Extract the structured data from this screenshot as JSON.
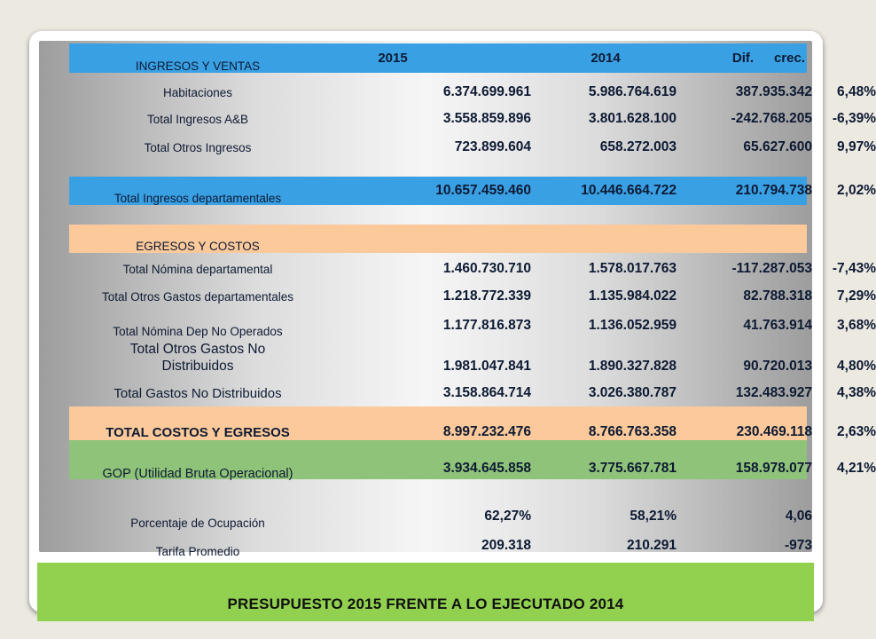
{
  "title": "PRESUPUESTO 2015 FRENTE A LO EJECUTADO 2014",
  "colors": {
    "header_blue": "#3aa0e4",
    "section_peach": "#fbc99a",
    "gop_green": "#8fc379",
    "footer_green": "#92d050"
  },
  "header": {
    "label": "INGRESOS Y VENTAS",
    "col1": "2015",
    "col2": "2014",
    "col3": "Dif.",
    "col4": "crec."
  },
  "rows": [
    {
      "label": "Habitaciones",
      "v2015": "6.374.699.961",
      "v2014": "5.986.764.619",
      "dif": "387.935.342",
      "crec": "6,48%"
    },
    {
      "label": "Total Ingresos A&B",
      "v2015": "3.558.859.896",
      "v2014": "3.801.628.100",
      "dif": "-242.768.205",
      "crec": "-6,39%"
    },
    {
      "label": "Total Otros Ingresos",
      "v2015": "723.899.604",
      "v2014": "658.272.003",
      "dif": "65.627.600",
      "crec": "9,97%"
    },
    {
      "label": "Total Ingresos departamentales",
      "v2015": "10.657.459.460",
      "v2014": "10.446.664.722",
      "dif": "210.794.738",
      "crec": "2,02%"
    },
    {
      "label": "EGRESOS Y COSTOS"
    },
    {
      "label": "Total Nómina departamental",
      "v2015": "1.460.730.710",
      "v2014": "1.578.017.763",
      "dif": "-117.287.053",
      "crec": "-7,43%"
    },
    {
      "label": "Total Otros Gastos departamentales",
      "v2015": "1.218.772.339",
      "v2014": "1.135.984.022",
      "dif": "82.788.318",
      "crec": "7,29%"
    },
    {
      "label": "Total Nómina Dep No Operados",
      "v2015": "1.177.816.873",
      "v2014": "1.136.052.959",
      "dif": "41.763.914",
      "crec": "3,68%"
    },
    {
      "label_line1": "Total Otros Gastos No",
      "label_line2": "Distribuidos",
      "v2015": "1.981.047.841",
      "v2014": "1.890.327.828",
      "dif": "90.720.013",
      "crec": "4,80%"
    },
    {
      "label": "Total Gastos No Distribuidos",
      "v2015": "3.158.864.714",
      "v2014": "3.026.380.787",
      "dif": "132.483.927",
      "crec": "4,38%"
    },
    {
      "label": "TOTAL COSTOS Y EGRESOS",
      "v2015": "8.997.232.476",
      "v2014": "8.766.763.358",
      "dif": "230.469.118",
      "crec": "2,63%"
    },
    {
      "label": "GOP (Utilidad Bruta Operacional)",
      "v2015": "3.934.645.858",
      "v2014": "3.775.667.781",
      "dif": "158.978.077",
      "crec": "4,21%"
    },
    {
      "label": "Porcentaje de Ocupación",
      "v2015": "62,27%",
      "v2014": "58,21%",
      "dif": "4,06"
    },
    {
      "label": "Tarifa Promedio",
      "v2015": "209.318",
      "v2014": "210.291",
      "dif": "-973"
    }
  ]
}
